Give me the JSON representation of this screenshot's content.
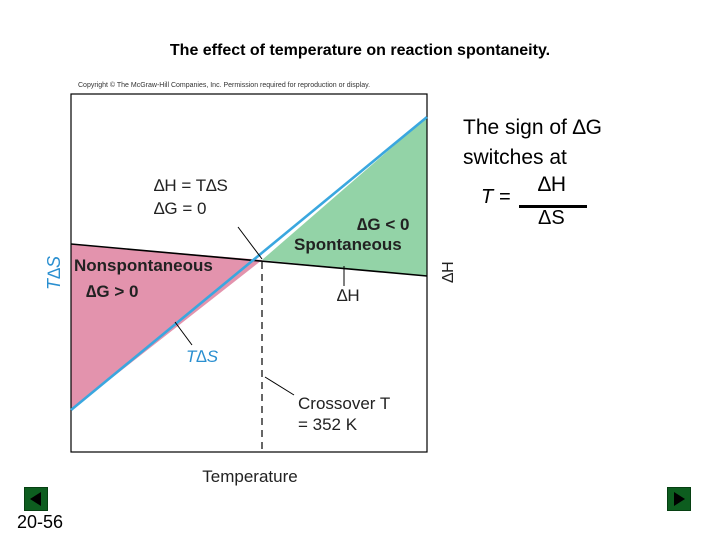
{
  "slide": {
    "title": "The effect of temperature on reaction spontaneity.",
    "copyright": "Copyright © The McGraw-Hill Companies, Inc. Permission required for reproduction or display.",
    "number": "20-56"
  },
  "explanation": {
    "line1": "The sign of ∆G",
    "line2": "switches at",
    "formula_lhs": "T =",
    "formula_numerator": "∆H",
    "formula_denominator": "ΔS"
  },
  "diagram": {
    "x_axis_label": "Temperature",
    "y_axis_left_label": "T∆S",
    "y_axis_right_label": "∆H",
    "equilibrium_line1": "∆H = T∆S",
    "equilibrium_line2": "∆G = 0",
    "spontaneous_line1": "∆G < 0",
    "spontaneous_line2": "Spontaneous",
    "nonspontaneous_line1": "Nonspontaneous",
    "nonspontaneous_line2": "∆G > 0",
    "dh_line_label": "∆H",
    "tds_line_label": "T∆S",
    "crossover_line1": "Crossover T",
    "crossover_line2": "= 352 K",
    "colors": {
      "spontaneous_fill": "#93d3a7",
      "nonspontaneous_fill": "#e393ad",
      "tds_line": "#3aa7df",
      "label_blue": "#2a8fd0"
    }
  },
  "navigation": {
    "prev_icon": "previous-arrow-icon",
    "next_icon": "next-arrow-icon"
  }
}
